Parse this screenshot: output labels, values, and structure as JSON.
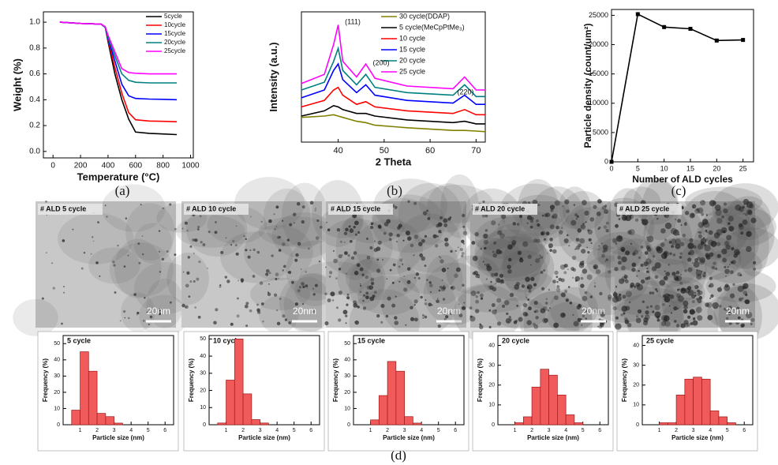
{
  "chart_data": [
    {
      "type": "line",
      "caption": "(a)",
      "x_label": "Temperature (°C)",
      "y_label": "Weight (%)",
      "x": [
        50,
        200,
        350,
        380,
        400,
        450,
        500,
        550,
        600,
        700,
        800,
        900
      ],
      "xlim": [
        -70,
        1020
      ],
      "xticks": [
        0,
        200,
        400,
        600,
        800,
        1000
      ],
      "ylim": [
        -0.05,
        1.08
      ],
      "yticks": [
        {
          "value": 0,
          "label": "0.0"
        },
        {
          "value": 0.2,
          "label": "0.2"
        },
        {
          "value": 0.4,
          "label": "0.4"
        },
        {
          "value": 0.6,
          "label": "0.6"
        },
        {
          "value": 0.8,
          "label": "0.8"
        },
        {
          "value": 1,
          "label": "1.0"
        }
      ],
      "legend": "upper right",
      "series": [
        {
          "name": "5cycle",
          "color": "#000000",
          "values": [
            1.0,
            0.99,
            0.985,
            0.96,
            0.85,
            0.6,
            0.4,
            0.25,
            0.15,
            0.14,
            0.135,
            0.13
          ]
        },
        {
          "name": "10cycle",
          "color": "#ff0000",
          "values": [
            1.0,
            0.99,
            0.985,
            0.96,
            0.86,
            0.65,
            0.45,
            0.3,
            0.245,
            0.235,
            0.233,
            0.23
          ]
        },
        {
          "name": "15cycle",
          "color": "#0000ff",
          "values": [
            1.0,
            0.99,
            0.985,
            0.96,
            0.87,
            0.7,
            0.52,
            0.43,
            0.41,
            0.405,
            0.403,
            0.4
          ]
        },
        {
          "name": "20cycle",
          "color": "#008080",
          "values": [
            1.0,
            0.99,
            0.985,
            0.96,
            0.88,
            0.74,
            0.6,
            0.55,
            0.535,
            0.53,
            0.53,
            0.53
          ]
        },
        {
          "name": "25cycle",
          "color": "#ff00ff",
          "values": [
            1.0,
            0.99,
            0.985,
            0.965,
            0.9,
            0.77,
            0.64,
            0.61,
            0.605,
            0.6,
            0.6,
            0.6
          ]
        }
      ]
    },
    {
      "type": "line",
      "caption": "(b)",
      "x_label": "2 Theta",
      "y_label": "Intensity (a.u.)",
      "x": [
        32,
        37,
        39,
        40,
        41,
        44,
        46,
        48,
        55,
        65,
        67.5,
        70,
        72
      ],
      "xlim": [
        32,
        72
      ],
      "xticks": [
        40,
        50,
        60,
        70
      ],
      "ylim": [
        0,
        1.0
      ],
      "legend": "upper right",
      "annotations": [
        "(111)",
        "(200)",
        "(220)"
      ],
      "series": [
        {
          "name": "30 cycle(DDAP)",
          "color": "#808000",
          "values": [
            0.19,
            0.2,
            0.21,
            0.2,
            0.19,
            0.16,
            0.15,
            0.13,
            0.11,
            0.09,
            0.09,
            0.085,
            0.08
          ]
        },
        {
          "name": "5 cycle(MeCpPtMe₃)",
          "color": "#000000",
          "values": [
            0.2,
            0.24,
            0.28,
            0.27,
            0.25,
            0.22,
            0.22,
            0.2,
            0.17,
            0.15,
            0.16,
            0.14,
            0.14
          ]
        },
        {
          "name": "10 cycle",
          "color": "#ff0000",
          "values": [
            0.27,
            0.32,
            0.4,
            0.42,
            0.36,
            0.29,
            0.31,
            0.27,
            0.24,
            0.22,
            0.25,
            0.21,
            0.21
          ]
        },
        {
          "name": "15 cycle",
          "color": "#0000ff",
          "values": [
            0.34,
            0.4,
            0.55,
            0.6,
            0.48,
            0.38,
            0.44,
            0.36,
            0.32,
            0.3,
            0.36,
            0.29,
            0.29
          ]
        },
        {
          "name": "20 cycle",
          "color": "#008080",
          "values": [
            0.4,
            0.46,
            0.62,
            0.72,
            0.55,
            0.44,
            0.52,
            0.42,
            0.38,
            0.36,
            0.44,
            0.35,
            0.35
          ]
        },
        {
          "name": "25 cycle",
          "color": "#ff00ff",
          "values": [
            0.45,
            0.52,
            0.75,
            0.9,
            0.62,
            0.5,
            0.6,
            0.49,
            0.43,
            0.41,
            0.5,
            0.4,
            0.4
          ]
        }
      ]
    },
    {
      "type": "line",
      "caption": "(c)",
      "x_label": "Number of ALD cycles",
      "y_label": "Particle density (count/um²)",
      "markers": true,
      "x": [
        0,
        5,
        10,
        15,
        20,
        25
      ],
      "xlim": [
        0,
        27
      ],
      "xticks": [
        0,
        5,
        10,
        15,
        20,
        25
      ],
      "ylim": [
        0,
        26000
      ],
      "yticks": [
        0,
        5000,
        10000,
        15000,
        20000,
        25000
      ],
      "series": [
        {
          "color": "#000000",
          "values": [
            0,
            25200,
            23000,
            22700,
            20700,
            20800
          ]
        }
      ]
    },
    {
      "type": "histogram",
      "title": "5 cycle",
      "x_label": "Particle size (nm)",
      "y_label": "Frequency (%)",
      "color": "#f05a5a",
      "bins": [
        0.5,
        1,
        1.5,
        2,
        2.5,
        3,
        3.5
      ],
      "counts": [
        9,
        45,
        33,
        7,
        5,
        1
      ],
      "xlim": [
        0,
        6.5
      ],
      "xticks": [
        1,
        2,
        3,
        4,
        5,
        6
      ],
      "ylim": [
        0,
        55
      ],
      "yticks": [
        0,
        10,
        20,
        30,
        40,
        50
      ]
    },
    {
      "type": "histogram",
      "title": "10 cycle",
      "x_label": "Particle size (nm)",
      "y_label": "Frequency (%)",
      "color": "#f05a5a",
      "bins": [
        0.5,
        1,
        1.5,
        2,
        2.5,
        3,
        3.5
      ],
      "counts": [
        1,
        26,
        50,
        18,
        3,
        1
      ],
      "xlim": [
        0,
        6.5
      ],
      "xticks": [
        1,
        2,
        3,
        4,
        5,
        6
      ],
      "ylim": [
        0,
        52
      ],
      "yticks": [
        0,
        10,
        20,
        30,
        40,
        50
      ]
    },
    {
      "type": "histogram",
      "title": "15 cycle",
      "x_label": "Particle size (nm)",
      "y_label": "Frequency (%)",
      "color": "#f05a5a",
      "bins": [
        1,
        1.5,
        2,
        2.5,
        3,
        3.5,
        4
      ],
      "counts": [
        3,
        18,
        39,
        33,
        5,
        1
      ],
      "xlim": [
        0,
        6.5
      ],
      "xticks": [
        1,
        2,
        3,
        4,
        5,
        6
      ],
      "ylim": [
        0,
        55
      ],
      "yticks": [
        0,
        10,
        20,
        30,
        40,
        50
      ]
    },
    {
      "type": "histogram",
      "title": "20 cycle",
      "x_label": "Particle size (nm)",
      "y_label": "Frequency (%)",
      "color": "#f05a5a",
      "bins": [
        1,
        1.5,
        2,
        2.5,
        3,
        3.5,
        4,
        4.5,
        5
      ],
      "counts": [
        1,
        4,
        19,
        28,
        25,
        15,
        5,
        1
      ],
      "xlim": [
        0,
        6.5
      ],
      "xticks": [
        1,
        2,
        3,
        4,
        5,
        6
      ],
      "ylim": [
        0,
        45
      ],
      "yticks": [
        0,
        10,
        20,
        30,
        40
      ]
    },
    {
      "type": "histogram",
      "title": "25 cycle",
      "x_label": "Particle size (nm)",
      "y_label": "Frequency (%)",
      "color": "#f05a5a",
      "bins": [
        1,
        1.5,
        2,
        2.5,
        3,
        3.5,
        4,
        4.5,
        5,
        5.5
      ],
      "counts": [
        1,
        1,
        15,
        23,
        24,
        23,
        7,
        4,
        1
      ],
      "xlim": [
        0,
        6.5
      ],
      "xticks": [
        1,
        2,
        3,
        4,
        5,
        6
      ],
      "ylim": [
        0,
        45
      ],
      "yticks": [
        0,
        10,
        20,
        30,
        40
      ]
    }
  ],
  "tem_images": [
    {
      "label": "# ALD 5 cycle",
      "scale": "20nm"
    },
    {
      "label": "# ALD 10 cycle",
      "scale": "20nm"
    },
    {
      "label": "# ALD 15 cycle",
      "scale": "20nm"
    },
    {
      "label": "# ALD 20 cycle",
      "scale": "20nm"
    },
    {
      "label": "# ALD 25 cycle",
      "scale": "20nm"
    }
  ],
  "panel_d_caption": "(d)"
}
